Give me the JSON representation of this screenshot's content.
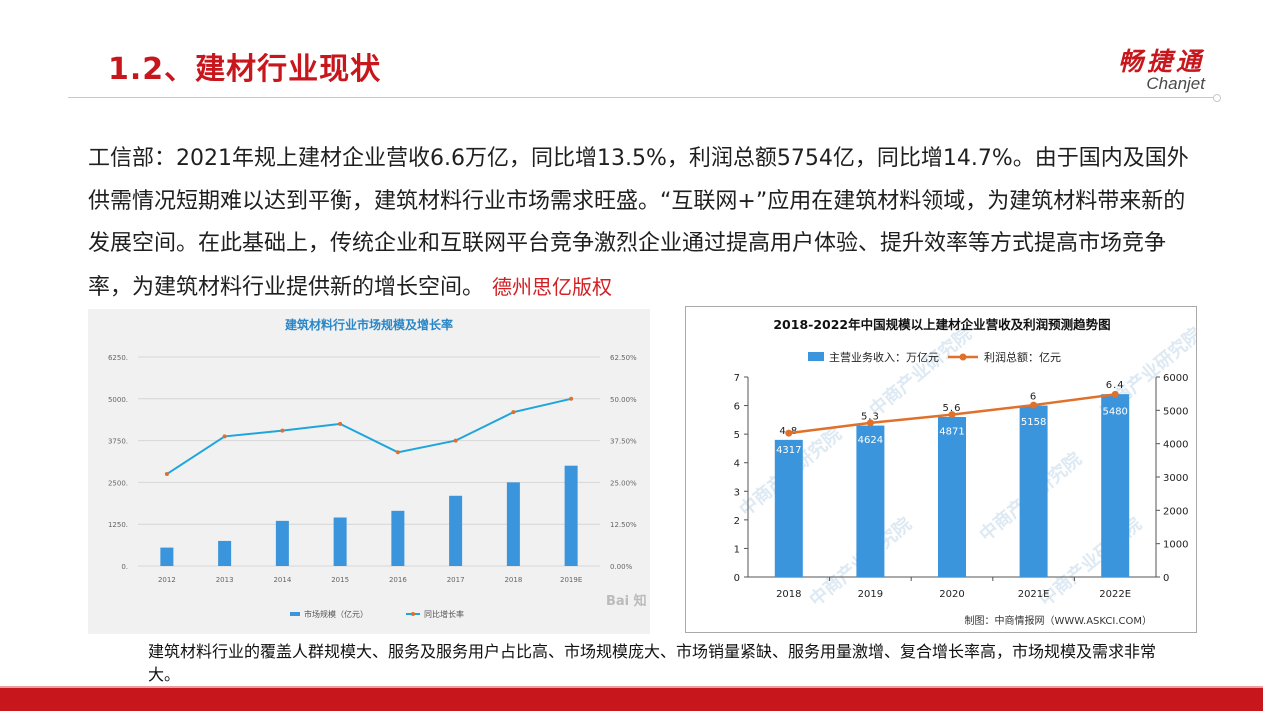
{
  "slide": {
    "title": "1.2、建材行业现状",
    "logo_cn": "畅捷通",
    "logo_en": "Chanjet",
    "paragraph": "工信部：2021年规上建材企业营收6.6万亿，同比增13.5%，利润总额5754亿，同比增14.7%。由于国内及国外供需情况短期难以达到平衡，建筑材料行业市场需求旺盛。“互联网+”应用在建筑材料领域，为建筑材料带来新的发展空间。在此基础上，传统企业和互联网平台竞争激烈企业通过提高用户体验、提升效率等方式提高市场竞争率，为建筑材料行业提供新的增长空间。",
    "copyright": "德州思亿版权",
    "caption": "建筑材料行业的覆盖人群规模大、服务及服务用户占比高、市场规模庞大、市场销量紧缺、服务用量激增、复合增长率高，市场规模及需求非常大。"
  },
  "colors": {
    "brand_red": "#c8161d",
    "bar_blue": "#3a95dc",
    "line_cyan": "#1ea6dc",
    "line_orange": "#e0702a"
  },
  "chart_data": [
    {
      "type": "bar",
      "title": "建筑材料行业市场规模及增长率",
      "categories": [
        "2012",
        "2013",
        "2014",
        "2015",
        "2016",
        "2017",
        "2018",
        "2019E"
      ],
      "series": [
        {
          "name": "市场规模（亿元）",
          "type": "bar",
          "axis": "left",
          "values": [
            550,
            750,
            1350,
            1450,
            1650,
            2100,
            2500,
            3000
          ]
        },
        {
          "name": "同比增长率",
          "type": "line",
          "axis": "right",
          "values": [
            27.5,
            38.75,
            40.5,
            42.5,
            34.0,
            37.5,
            46.0,
            50.0
          ]
        }
      ],
      "y_left_ticks": [
        "0.",
        "1250.",
        "2500.",
        "3750.",
        "5000.",
        "6250."
      ],
      "y_right_ticks": [
        "0.00%",
        "12.50%",
        "25.00%",
        "37.50%",
        "50.00%",
        "62.50%"
      ],
      "ylim_left": [
        0,
        6250
      ],
      "ylim_right": [
        0,
        62.5
      ],
      "grid": true,
      "legend_position": "bottom",
      "watermark": "Bai 知"
    },
    {
      "type": "bar",
      "title": "2018-2022年中国规模以上建材企业营收及利润预测趋势图",
      "categories": [
        "2018",
        "2019",
        "2020",
        "2021E",
        "2022E"
      ],
      "series": [
        {
          "name": "主营业务收入：万亿元",
          "type": "bar",
          "axis": "left",
          "values": [
            4.8,
            5.3,
            5.6,
            6,
            6.4
          ],
          "labels": [
            "4.8",
            "5.3",
            "5.6",
            "6",
            "6.4"
          ]
        },
        {
          "name": "利润总额：亿元",
          "type": "line",
          "axis": "right",
          "values": [
            4317,
            4624,
            4871,
            5158,
            5480
          ],
          "labels": [
            "4317",
            "4624",
            "4871",
            "5158",
            "5480"
          ]
        }
      ],
      "y_left_ticks": [
        "0",
        "1",
        "2",
        "3",
        "4",
        "5",
        "6",
        "7"
      ],
      "y_right_ticks": [
        "0",
        "1000",
        "2000",
        "3000",
        "4000",
        "5000",
        "6000"
      ],
      "ylim_left": [
        0,
        7
      ],
      "ylim_right": [
        0,
        6000
      ],
      "grid": false,
      "legend_position": "top",
      "source": "制图：中商情报网（WWW.ASKCI.COM）",
      "watermark": "中商产业研究院"
    }
  ]
}
